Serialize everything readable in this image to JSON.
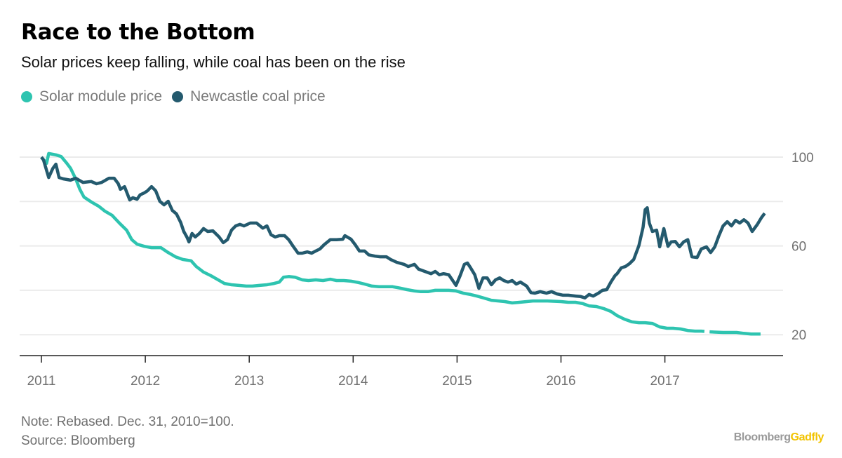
{
  "header": {
    "title": "Race to the Bottom",
    "subtitle": "Solar prices keep falling, while coal has been on the rise"
  },
  "legend": [
    {
      "label": "Solar module price",
      "color": "#2ec4b0"
    },
    {
      "label": "Newcastle coal price",
      "color": "#245a6e"
    }
  ],
  "footer": {
    "note": "Note: Rebased. Dec. 31, 2010=100.",
    "source": "Source: Bloomberg",
    "brand_primary": "Bloomberg",
    "brand_secondary": "Gadfly"
  },
  "chart_data": {
    "type": "line",
    "title": "Race to the Bottom",
    "subtitle": "Solar prices keep falling, while coal has been on the rise",
    "xlabel": "",
    "ylabel": "",
    "xlim": [
      2010.95,
      2018.15
    ],
    "ylim": [
      10.5,
      100
    ],
    "grid": true,
    "legend_position": "top-left",
    "y_axis_side": "right",
    "y_ticks": [
      100,
      60,
      20
    ],
    "y_gridlines": [
      100,
      80,
      60,
      40,
      20
    ],
    "x_ticks": [
      {
        "value": 2011,
        "label": "2011"
      },
      {
        "value": 2012,
        "label": "2012"
      },
      {
        "value": 2013,
        "label": "2013"
      },
      {
        "value": 2014,
        "label": "2014"
      },
      {
        "value": 2015,
        "label": "2015"
      },
      {
        "value": 2016,
        "label": "2016"
      },
      {
        "value": 2017,
        "label": "2017"
      }
    ],
    "series": [
      {
        "name": "Solar module price",
        "color": "#2ec4b0",
        "points": [
          [
            2011.0,
            100
          ],
          [
            2011.05,
            97.2
          ],
          [
            2011.07,
            101.6
          ],
          [
            2011.14,
            101
          ],
          [
            2011.19,
            100.3
          ],
          [
            2011.24,
            97.5
          ],
          [
            2011.28,
            95
          ],
          [
            2011.33,
            90.2
          ],
          [
            2011.37,
            85.5
          ],
          [
            2011.41,
            82
          ],
          [
            2011.48,
            79.8
          ],
          [
            2011.55,
            77.9
          ],
          [
            2011.61,
            75.7
          ],
          [
            2011.68,
            73.8
          ],
          [
            2011.75,
            70.3
          ],
          [
            2011.82,
            67.1
          ],
          [
            2011.87,
            62.8
          ],
          [
            2011.92,
            60.8
          ],
          [
            2011.99,
            59.8
          ],
          [
            2012.06,
            59.2
          ],
          [
            2012.15,
            59.2
          ],
          [
            2012.22,
            57
          ],
          [
            2012.29,
            55.1
          ],
          [
            2012.36,
            53.9
          ],
          [
            2012.44,
            53.3
          ],
          [
            2012.49,
            50.7
          ],
          [
            2012.56,
            48.2
          ],
          [
            2012.63,
            46.6
          ],
          [
            2012.69,
            45
          ],
          [
            2012.76,
            43.1
          ],
          [
            2012.83,
            42.5
          ],
          [
            2012.9,
            42.2
          ],
          [
            2012.97,
            41.9
          ],
          [
            2013.03,
            41.9
          ],
          [
            2013.1,
            42.2
          ],
          [
            2013.17,
            42.5
          ],
          [
            2013.24,
            43.1
          ],
          [
            2013.29,
            43.7
          ],
          [
            2013.33,
            45.9
          ],
          [
            2013.38,
            46.2
          ],
          [
            2013.44,
            45.9
          ],
          [
            2013.51,
            44.7
          ],
          [
            2013.57,
            44.4
          ],
          [
            2013.64,
            44.7
          ],
          [
            2013.71,
            44.4
          ],
          [
            2013.78,
            45
          ],
          [
            2013.84,
            44.4
          ],
          [
            2013.91,
            44.4
          ],
          [
            2013.98,
            44.1
          ],
          [
            2014.05,
            43.5
          ],
          [
            2014.11,
            42.8
          ],
          [
            2014.18,
            41.9
          ],
          [
            2014.25,
            41.6
          ],
          [
            2014.38,
            41.6
          ],
          [
            2014.45,
            41
          ],
          [
            2014.52,
            40.3
          ],
          [
            2014.59,
            39.7
          ],
          [
            2014.65,
            39.4
          ],
          [
            2014.72,
            39.4
          ],
          [
            2014.79,
            40
          ],
          [
            2014.92,
            40
          ],
          [
            2014.99,
            39.7
          ],
          [
            2015.06,
            38.7
          ],
          [
            2015.13,
            38.1
          ],
          [
            2015.19,
            37.4
          ],
          [
            2015.26,
            36.5
          ],
          [
            2015.33,
            35.5
          ],
          [
            2015.4,
            35.2
          ],
          [
            2015.46,
            34.9
          ],
          [
            2015.53,
            34.3
          ],
          [
            2015.6,
            34.6
          ],
          [
            2015.67,
            34.9
          ],
          [
            2015.73,
            35.2
          ],
          [
            2015.87,
            35.2
          ],
          [
            2016.0,
            34.9
          ],
          [
            2016.07,
            34.6
          ],
          [
            2016.14,
            34.6
          ],
          [
            2016.21,
            34
          ],
          [
            2016.27,
            33
          ],
          [
            2016.34,
            32.7
          ],
          [
            2016.41,
            31.8
          ],
          [
            2016.48,
            30.5
          ],
          [
            2016.54,
            28.6
          ],
          [
            2016.61,
            27
          ],
          [
            2016.68,
            25.8
          ],
          [
            2016.75,
            25.4
          ],
          [
            2016.81,
            25.4
          ],
          [
            2016.88,
            25.1
          ],
          [
            2016.95,
            23.5
          ],
          [
            2017.02,
            22.9
          ],
          [
            2017.08,
            22.9
          ],
          [
            2017.15,
            22.6
          ],
          [
            2017.22,
            21.9
          ],
          [
            2017.29,
            21.6
          ],
          [
            2017.35,
            21.6
          ],
          [
            2017.38,
            21.5
          ],
          null,
          [
            2017.43,
            21.3
          ],
          [
            2017.56,
            21
          ],
          [
            2017.69,
            21
          ],
          [
            2017.76,
            20.6
          ],
          [
            2017.83,
            20.3
          ],
          [
            2017.92,
            20.3
          ]
        ]
      },
      {
        "name": "Newcastle coal price",
        "color": "#245a6e",
        "points": [
          [
            2011.0,
            100
          ],
          [
            2011.02,
            98.7
          ],
          [
            2011.05,
            94
          ],
          [
            2011.07,
            90.8
          ],
          [
            2011.11,
            94.9
          ],
          [
            2011.14,
            96.8
          ],
          [
            2011.17,
            90.8
          ],
          [
            2011.21,
            90.2
          ],
          [
            2011.28,
            89.6
          ],
          [
            2011.33,
            90.5
          ],
          [
            2011.4,
            88.6
          ],
          [
            2011.48,
            89
          ],
          [
            2011.53,
            88
          ],
          [
            2011.58,
            88.6
          ],
          [
            2011.65,
            90.5
          ],
          [
            2011.7,
            90.5
          ],
          [
            2011.74,
            88
          ],
          [
            2011.76,
            85.5
          ],
          [
            2011.8,
            86.7
          ],
          [
            2011.85,
            80.7
          ],
          [
            2011.88,
            81.7
          ],
          [
            2011.92,
            81
          ],
          [
            2011.95,
            83
          ],
          [
            2011.99,
            83.9
          ],
          [
            2012.02,
            84.8
          ],
          [
            2012.06,
            86.7
          ],
          [
            2012.1,
            84.8
          ],
          [
            2012.14,
            80.1
          ],
          [
            2012.18,
            78.5
          ],
          [
            2012.22,
            80.1
          ],
          [
            2012.26,
            76
          ],
          [
            2012.3,
            74.4
          ],
          [
            2012.34,
            70.6
          ],
          [
            2012.37,
            66.5
          ],
          [
            2012.4,
            64
          ],
          [
            2012.42,
            61.8
          ],
          [
            2012.45,
            65.6
          ],
          [
            2012.48,
            64
          ],
          [
            2012.52,
            65.6
          ],
          [
            2012.56,
            67.8
          ],
          [
            2012.6,
            66.5
          ],
          [
            2012.65,
            66.8
          ],
          [
            2012.71,
            64
          ],
          [
            2012.75,
            61.5
          ],
          [
            2012.79,
            62.8
          ],
          [
            2012.83,
            67.1
          ],
          [
            2012.87,
            69
          ],
          [
            2012.91,
            69.7
          ],
          [
            2012.95,
            69
          ],
          [
            2013.01,
            70.3
          ],
          [
            2013.07,
            70.3
          ],
          [
            2013.13,
            68
          ],
          [
            2013.17,
            69
          ],
          [
            2013.21,
            65
          ],
          [
            2013.25,
            64
          ],
          [
            2013.29,
            64.6
          ],
          [
            2013.34,
            64.6
          ],
          [
            2013.38,
            62.8
          ],
          [
            2013.42,
            60
          ],
          [
            2013.47,
            56.7
          ],
          [
            2013.51,
            56.7
          ],
          [
            2013.56,
            57.3
          ],
          [
            2013.6,
            56.7
          ],
          [
            2013.64,
            57.7
          ],
          [
            2013.68,
            58.6
          ],
          [
            2013.72,
            60.5
          ],
          [
            2013.78,
            62.8
          ],
          [
            2013.84,
            62.8
          ],
          [
            2013.9,
            63
          ],
          [
            2013.92,
            64.6
          ],
          [
            2013.98,
            63
          ],
          [
            2014.02,
            60.5
          ],
          [
            2014.06,
            57.7
          ],
          [
            2014.11,
            57.7
          ],
          [
            2014.15,
            56
          ],
          [
            2014.21,
            55.4
          ],
          [
            2014.26,
            55.1
          ],
          [
            2014.32,
            55.1
          ],
          [
            2014.36,
            53.9
          ],
          [
            2014.42,
            52.6
          ],
          [
            2014.49,
            51.7
          ],
          [
            2014.53,
            50.7
          ],
          [
            2014.59,
            51.7
          ],
          [
            2014.63,
            49.5
          ],
          [
            2014.69,
            48.5
          ],
          [
            2014.75,
            47.5
          ],
          [
            2014.79,
            48.5
          ],
          [
            2014.83,
            47
          ],
          [
            2014.87,
            47.5
          ],
          [
            2014.92,
            47
          ],
          [
            2014.99,
            42.2
          ],
          [
            2015.03,
            46.6
          ],
          [
            2015.07,
            51.7
          ],
          [
            2015.1,
            52.3
          ],
          [
            2015.13,
            50.1
          ],
          [
            2015.17,
            47
          ],
          [
            2015.21,
            40.9
          ],
          [
            2015.25,
            45.6
          ],
          [
            2015.29,
            45.6
          ],
          [
            2015.33,
            42.5
          ],
          [
            2015.37,
            44.7
          ],
          [
            2015.41,
            45.6
          ],
          [
            2015.45,
            44.4
          ],
          [
            2015.49,
            43.7
          ],
          [
            2015.53,
            44.4
          ],
          [
            2015.57,
            42.8
          ],
          [
            2015.61,
            43.7
          ],
          [
            2015.67,
            41.9
          ],
          [
            2015.71,
            39
          ],
          [
            2015.75,
            38.7
          ],
          [
            2015.8,
            39.4
          ],
          [
            2015.86,
            38.7
          ],
          [
            2015.91,
            39.4
          ],
          [
            2015.96,
            38.4
          ],
          [
            2016.02,
            37.8
          ],
          [
            2016.07,
            37.8
          ],
          [
            2016.14,
            37.4
          ],
          [
            2016.19,
            37.2
          ],
          [
            2016.23,
            36.6
          ],
          [
            2016.27,
            38.1
          ],
          [
            2016.31,
            37.4
          ],
          [
            2016.36,
            38.7
          ],
          [
            2016.4,
            40
          ],
          [
            2016.44,
            40.3
          ],
          [
            2016.48,
            43.7
          ],
          [
            2016.52,
            46.6
          ],
          [
            2016.54,
            47.5
          ],
          [
            2016.58,
            50.1
          ],
          [
            2016.62,
            50.7
          ],
          [
            2016.66,
            52
          ],
          [
            2016.7,
            53.9
          ],
          [
            2016.75,
            60.2
          ],
          [
            2016.79,
            68.4
          ],
          [
            2016.81,
            76.3
          ],
          [
            2016.83,
            77.2
          ],
          [
            2016.85,
            70.3
          ],
          [
            2016.88,
            66.5
          ],
          [
            2016.92,
            67.1
          ],
          [
            2016.95,
            59.6
          ],
          [
            2016.99,
            67.8
          ],
          [
            2017.03,
            59.8
          ],
          [
            2017.06,
            61.8
          ],
          [
            2017.1,
            62
          ],
          [
            2017.14,
            59.6
          ],
          [
            2017.18,
            61.8
          ],
          [
            2017.22,
            62.8
          ],
          [
            2017.26,
            55.1
          ],
          [
            2017.31,
            54.8
          ],
          [
            2017.35,
            58.6
          ],
          [
            2017.4,
            59.6
          ],
          [
            2017.44,
            57
          ],
          [
            2017.48,
            59.6
          ],
          [
            2017.52,
            64.6
          ],
          [
            2017.56,
            69
          ],
          [
            2017.6,
            70.9
          ],
          [
            2017.64,
            69
          ],
          [
            2017.68,
            71.5
          ],
          [
            2017.72,
            70.3
          ],
          [
            2017.76,
            71.8
          ],
          [
            2017.8,
            70.3
          ],
          [
            2017.84,
            66.5
          ],
          [
            2017.89,
            69.7
          ],
          [
            2017.93,
            72.8
          ],
          [
            2017.96,
            74.7
          ]
        ]
      }
    ]
  }
}
